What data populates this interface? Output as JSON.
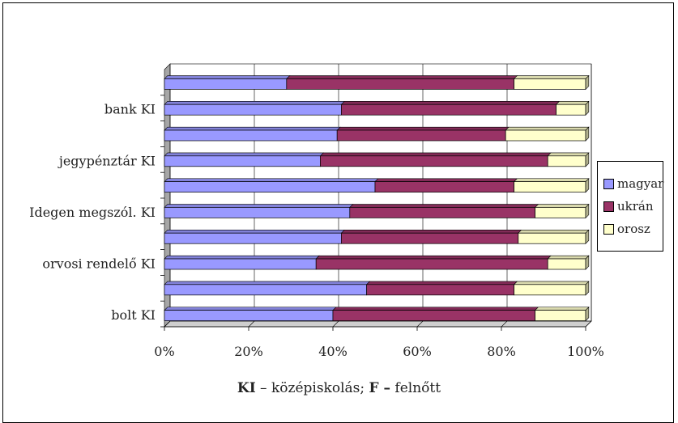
{
  "chart_data": {
    "type": "bar",
    "orientation": "horizontal",
    "stacked": "100%",
    "categories": [
      "bolt KI",
      "",
      "orvosi rendelő KI",
      "",
      "Idegen megszól. KI",
      "",
      "jegypénztár KI",
      "",
      "bank KI",
      ""
    ],
    "series": [
      {
        "name": "magyar",
        "color": "#9999ff",
        "values": [
          40,
          48,
          36,
          42,
          44,
          50,
          37,
          41,
          42,
          29
        ]
      },
      {
        "name": "ukrán",
        "color": "#993366",
        "values": [
          48,
          35,
          55,
          42,
          44,
          33,
          54,
          40,
          51,
          54
        ]
      },
      {
        "name": "orosz",
        "color": "#ffffcc",
        "values": [
          12,
          17,
          9,
          16,
          12,
          17,
          9,
          19,
          7,
          17
        ]
      }
    ],
    "x_ticks": [
      "0%",
      "20%",
      "40%",
      "60%",
      "80%",
      "100%"
    ],
    "xlim": [
      0,
      100
    ],
    "grid": true,
    "legend_position": "right"
  },
  "caption": {
    "ki_abbr": "KI",
    "ki_text": " – középiskolás; ",
    "f_abbr": "F –",
    "f_text": " felnőtt"
  }
}
